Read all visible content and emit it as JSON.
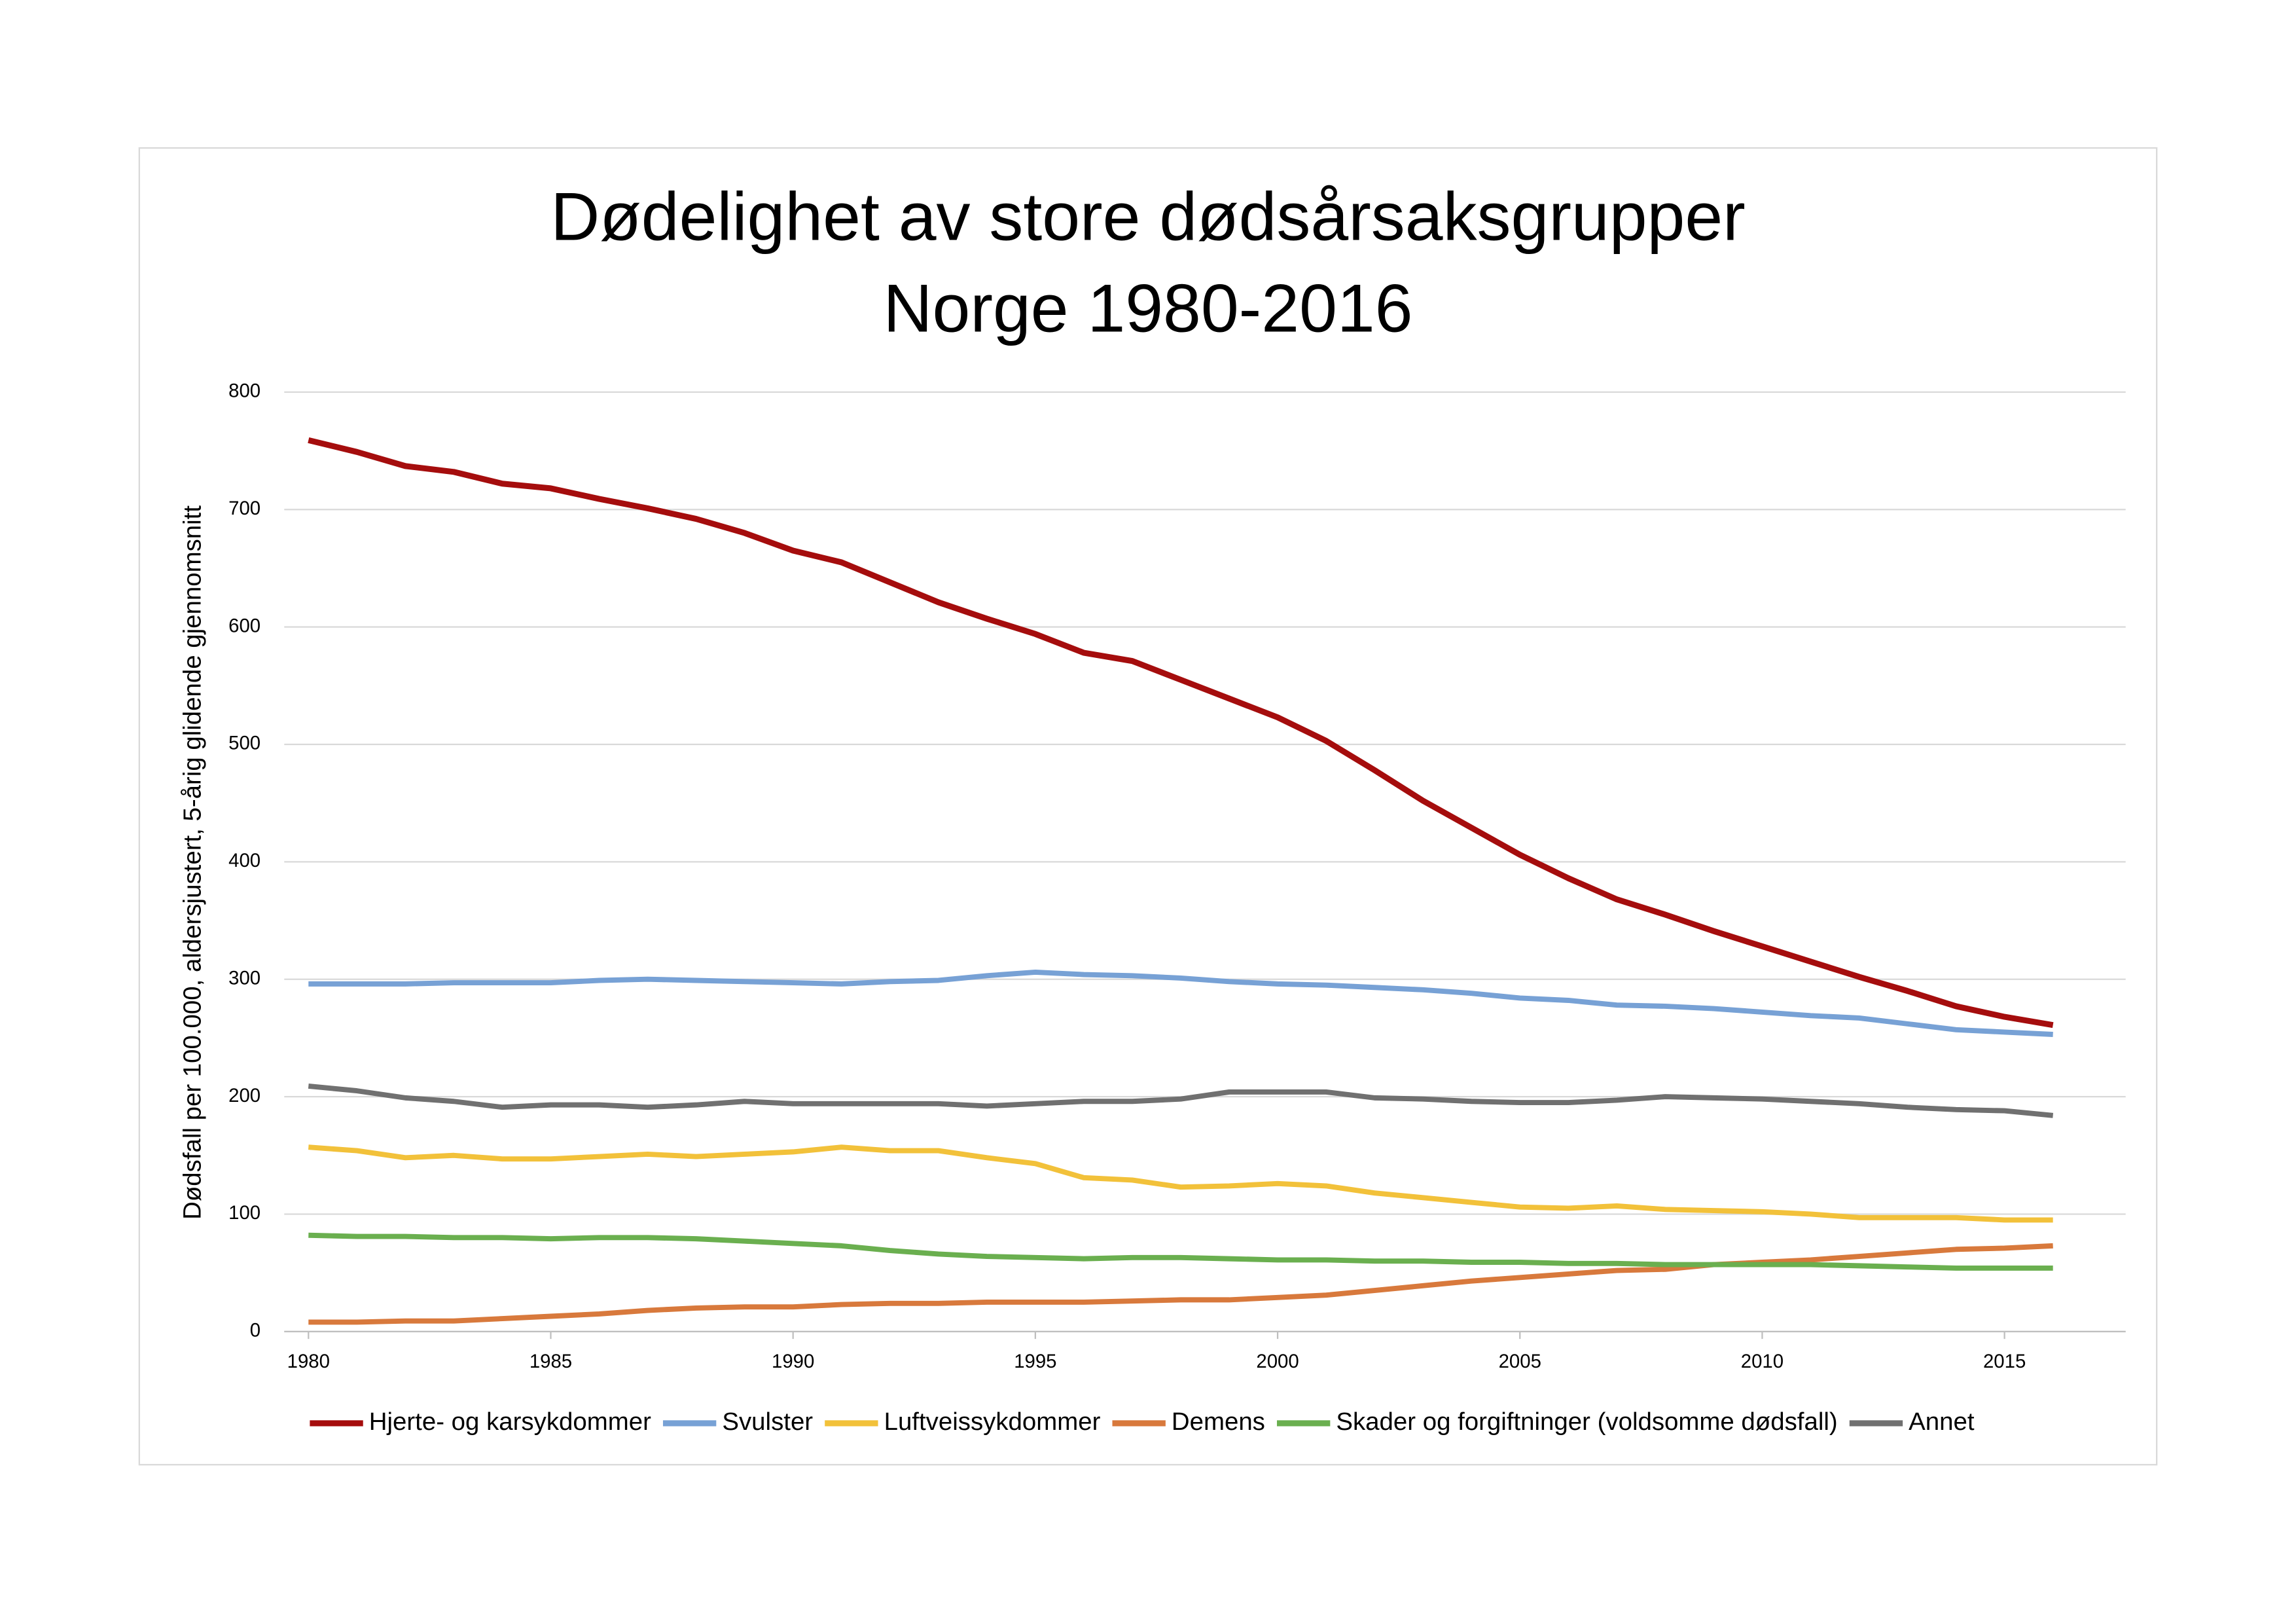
{
  "chart_data": {
    "type": "line",
    "title": "Dødelighet av store dødsårsaksgrupper",
    "subtitle": "Norge 1980-2016",
    "y_label": "Dødsfall per 100.000, aldersjustert, 5-årig glidende gjennomsnitt",
    "x": [
      1980,
      1981,
      1982,
      1983,
      1984,
      1985,
      1986,
      1987,
      1988,
      1989,
      1990,
      1991,
      1992,
      1993,
      1994,
      1995,
      1996,
      1997,
      1998,
      1999,
      2000,
      2001,
      2002,
      2003,
      2004,
      2005,
      2006,
      2007,
      2008,
      2009,
      2010,
      2011,
      2012,
      2013,
      2014,
      2015,
      2016
    ],
    "xlim": [
      1979.5,
      2017.5
    ],
    "xticks": [
      1980,
      1985,
      1990,
      1995,
      2000,
      2005,
      2010,
      2015
    ],
    "ylim": [
      0,
      800
    ],
    "yticks": [
      0,
      100,
      200,
      300,
      400,
      500,
      600,
      700,
      800
    ],
    "grid": true,
    "legend": "bottom",
    "series": [
      {
        "name": "Hjerte- og karsykdommer",
        "color": "#a50d0d",
        "values": [
          759,
          749,
          737,
          732,
          722,
          718,
          709,
          701,
          692,
          680,
          665,
          655,
          638,
          621,
          607,
          594,
          578,
          571,
          555,
          539,
          523,
          503,
          478,
          452,
          429,
          406,
          386,
          368,
          355,
          341,
          328,
          315,
          302,
          290,
          277,
          268,
          261
        ]
      },
      {
        "name": "Svulster",
        "color": "#77a1d5",
        "values": [
          296,
          296,
          296,
          297,
          297,
          297,
          299,
          300,
          299,
          298,
          297,
          296,
          298,
          299,
          303,
          306,
          304,
          303,
          301,
          298,
          296,
          295,
          293,
          291,
          288,
          284,
          282,
          278,
          277,
          275,
          272,
          269,
          267,
          262,
          257,
          255,
          253
        ]
      },
      {
        "name": "Luftveissykdommer",
        "color": "#f2c13a",
        "values": [
          157,
          154,
          148,
          150,
          147,
          147,
          149,
          151,
          149,
          151,
          153,
          157,
          154,
          154,
          148,
          143,
          131,
          129,
          123,
          124,
          126,
          124,
          118,
          114,
          110,
          106,
          105,
          107,
          104,
          103,
          102,
          100,
          97,
          97,
          97,
          95,
          95
        ]
      },
      {
        "name": "Demens",
        "color": "#d8793c",
        "values": [
          8,
          8,
          9,
          9,
          11,
          13,
          15,
          18,
          20,
          21,
          21,
          23,
          24,
          24,
          25,
          25,
          25,
          26,
          27,
          27,
          29,
          31,
          35,
          39,
          43,
          46,
          49,
          52,
          53,
          57,
          59,
          61,
          64,
          67,
          70,
          71,
          73
        ]
      },
      {
        "name": "Skader og forgiftninger (voldsomme dødsfall)",
        "color": "#6aaf4f",
        "values": [
          82,
          81,
          81,
          80,
          80,
          79,
          80,
          80,
          79,
          77,
          75,
          73,
          69,
          66,
          64,
          63,
          62,
          63,
          63,
          62,
          61,
          61,
          60,
          60,
          59,
          59,
          58,
          58,
          57,
          57,
          57,
          57,
          56,
          55,
          54,
          54,
          54
        ]
      },
      {
        "name": "Annet",
        "color": "#707070",
        "values": [
          209,
          205,
          199,
          196,
          191,
          193,
          193,
          191,
          193,
          196,
          194,
          194,
          194,
          194,
          192,
          194,
          196,
          196,
          198,
          204,
          204,
          204,
          199,
          198,
          196,
          195,
          195,
          197,
          200,
          199,
          198,
          196,
          194,
          191,
          189,
          188,
          184
        ]
      }
    ]
  }
}
